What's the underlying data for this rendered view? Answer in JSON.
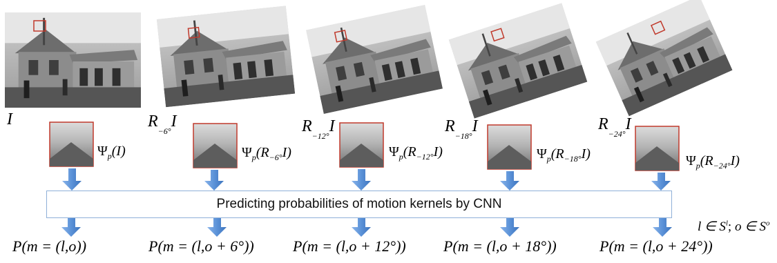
{
  "banner": {
    "text": "Predicting probabilities of motion kernels by CNN"
  },
  "images": [
    {
      "label_base": "R",
      "label_sub": "",
      "label_tail": "I",
      "image_caption": "I"
    },
    {
      "label_base": "R",
      "label_sub": "−6°",
      "label_tail": "I"
    },
    {
      "label_base": "R",
      "label_sub": "−12°",
      "label_tail": "I"
    },
    {
      "label_base": "R",
      "label_sub": "−18°",
      "label_tail": "I"
    },
    {
      "label_base": "R",
      "label_sub": "−24°",
      "label_tail": "I"
    }
  ],
  "patch_labels": [
    {
      "psi": "Ψ",
      "sub": "p",
      "arg": "(I)"
    },
    {
      "psi": "Ψ",
      "sub": "p",
      "arg_pre": "(R",
      "arg_sub": "−6°",
      "arg_post": "I)"
    },
    {
      "psi": "Ψ",
      "sub": "p",
      "arg_pre": "(R",
      "arg_sub": "−12°",
      "arg_post": "I)"
    },
    {
      "psi": "Ψ",
      "sub": "p",
      "arg_pre": "(R",
      "arg_sub": "−18°",
      "arg_post": "I)"
    },
    {
      "psi": "Ψ",
      "sub": "p",
      "arg_pre": "(R",
      "arg_sub": "−24°",
      "arg_post": "I)"
    }
  ],
  "probabilities": [
    "P(m = (l,o))",
    "P(m = (l,o + 6°))",
    "P(m = (l,o + 12°))",
    "P(m = (l,o + 18°))",
    "P(m = (l,o + 24°))"
  ],
  "domain": {
    "l_part": "l ∈ S",
    "l_sup": "l",
    "sep": "; ",
    "o_part": "o ∈ S",
    "o_sup": "o"
  },
  "colors": {
    "arrow": "#5b92d8",
    "box": "#c0392b",
    "banner_border": "#8fb0d8"
  }
}
